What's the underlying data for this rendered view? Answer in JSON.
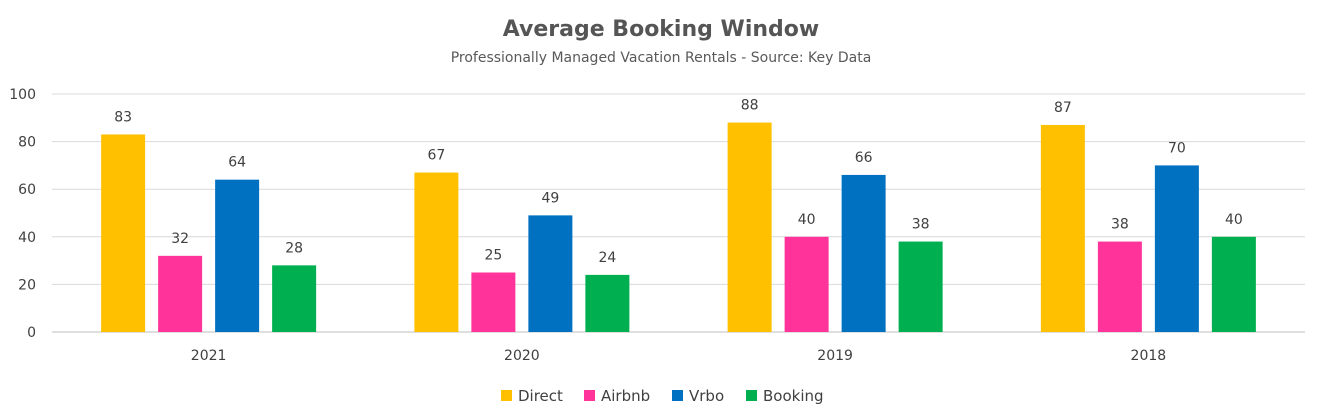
{
  "chart_data": {
    "type": "bar",
    "title": "Average Booking Window",
    "subtitle": "Professionally Managed Vacation Rentals - Source:  Key Data",
    "categories": [
      "2021",
      "2020",
      "2019",
      "2018"
    ],
    "series": [
      {
        "name": "Direct",
        "color": "#FFC000",
        "values": [
          83,
          67,
          88,
          87
        ]
      },
      {
        "name": "Airbnb",
        "color": "#FF3399",
        "values": [
          32,
          25,
          40,
          38
        ]
      },
      {
        "name": "Vrbo",
        "color": "#0070C0",
        "values": [
          64,
          49,
          66,
          70
        ]
      },
      {
        "name": "Booking",
        "color": "#00B050",
        "values": [
          28,
          24,
          38,
          40
        ]
      }
    ],
    "xlabel": "",
    "ylabel": "",
    "ylim": [
      0,
      100
    ],
    "yticks": [
      "0",
      "20",
      "40",
      "60",
      "80",
      "100"
    ],
    "grid": true,
    "legend_position": "bottom",
    "data_labels": true
  }
}
